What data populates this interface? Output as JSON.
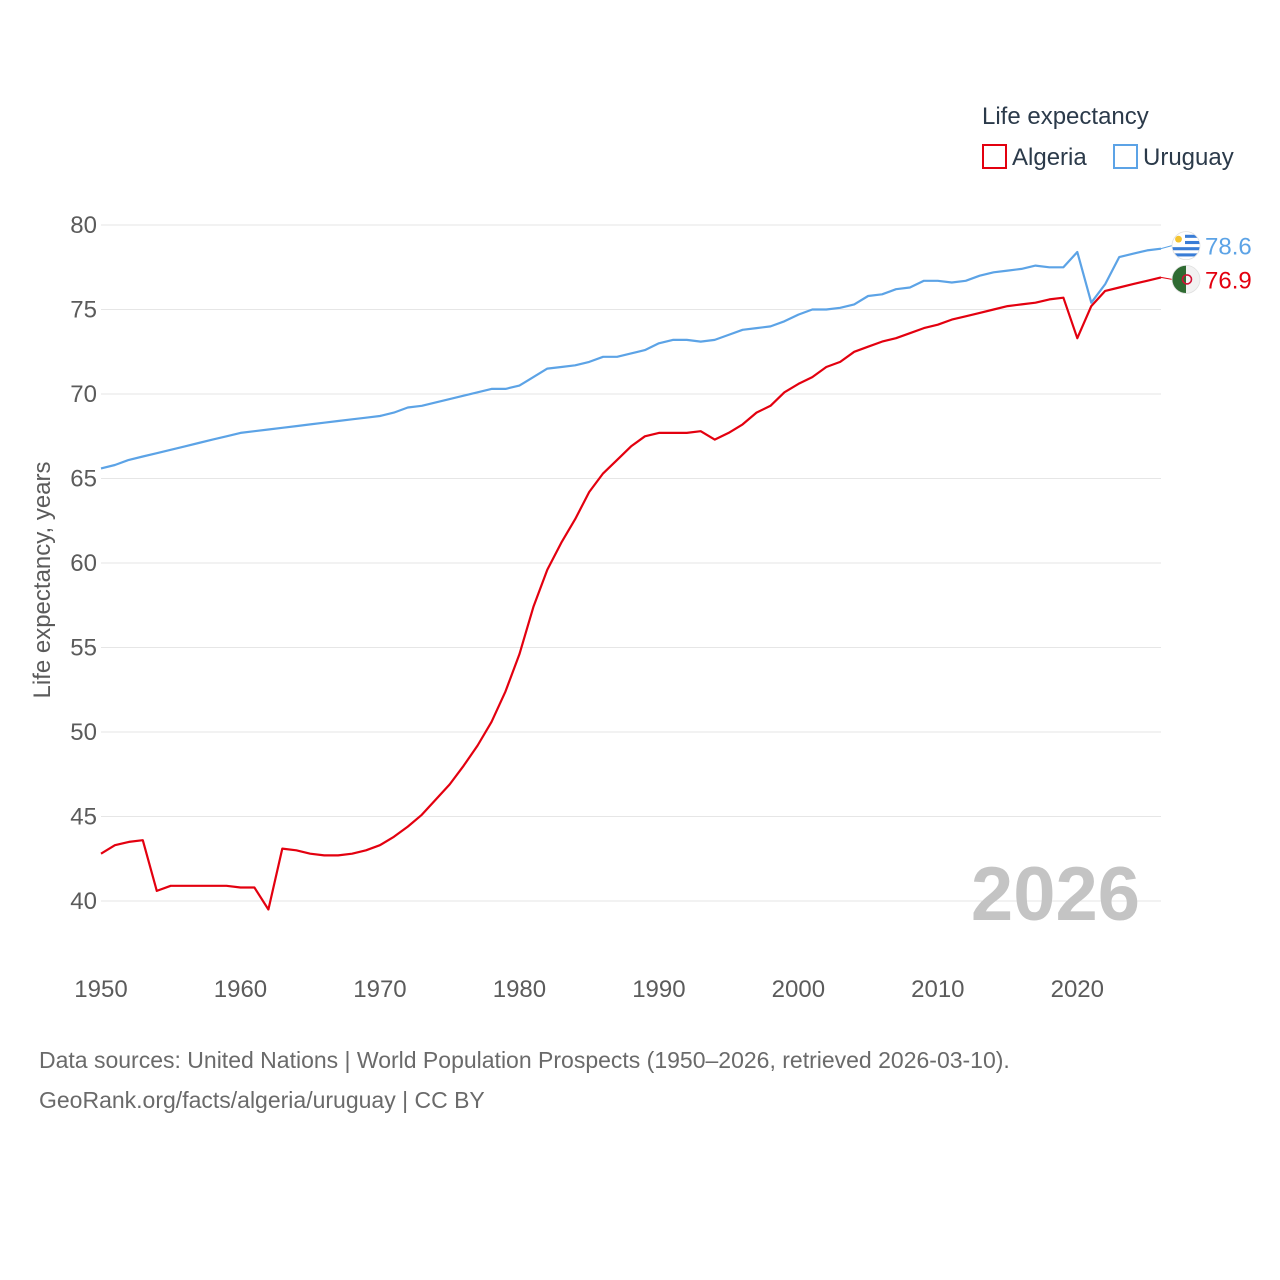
{
  "chart_data": {
    "type": "line",
    "title": "",
    "legend_title": "Life expectancy",
    "xlabel": "",
    "ylabel": "Life expectancy, years",
    "xlim": [
      1950,
      2026
    ],
    "ylim": [
      38,
      81
    ],
    "x_ticks": [
      1950,
      1960,
      1970,
      1980,
      1990,
      2000,
      2010,
      2020
    ],
    "y_ticks": [
      40,
      45,
      50,
      55,
      60,
      65,
      70,
      75,
      80
    ],
    "grid": true,
    "legend_position": "top-right",
    "year_label": "2026",
    "x": [
      1950,
      1951,
      1952,
      1953,
      1954,
      1955,
      1956,
      1957,
      1958,
      1959,
      1960,
      1961,
      1962,
      1963,
      1964,
      1965,
      1966,
      1967,
      1968,
      1969,
      1970,
      1971,
      1972,
      1973,
      1974,
      1975,
      1976,
      1977,
      1978,
      1979,
      1980,
      1981,
      1982,
      1983,
      1984,
      1985,
      1986,
      1987,
      1988,
      1989,
      1990,
      1991,
      1992,
      1993,
      1994,
      1995,
      1996,
      1997,
      1998,
      1999,
      2000,
      2001,
      2002,
      2003,
      2004,
      2005,
      2006,
      2007,
      2008,
      2009,
      2010,
      2011,
      2012,
      2013,
      2014,
      2015,
      2016,
      2017,
      2018,
      2019,
      2020,
      2021,
      2022,
      2023,
      2024,
      2025,
      2026
    ],
    "series": [
      {
        "name": "Algeria",
        "color": "#e3000f",
        "end_label": "76.9",
        "flag_icon": "algeria-flag-icon",
        "values": [
          42.8,
          43.3,
          43.5,
          43.6,
          40.6,
          40.9,
          40.9,
          40.9,
          40.9,
          40.9,
          40.8,
          40.8,
          39.5,
          43.1,
          43.0,
          42.8,
          42.7,
          42.7,
          42.8,
          43.0,
          43.3,
          43.8,
          44.4,
          45.1,
          46.0,
          46.9,
          48.0,
          49.2,
          50.6,
          52.4,
          54.6,
          57.4,
          59.6,
          61.2,
          62.6,
          64.2,
          65.3,
          66.1,
          66.9,
          67.5,
          67.7,
          67.7,
          67.7,
          67.8,
          67.3,
          67.7,
          68.2,
          68.9,
          69.3,
          70.1,
          70.6,
          71.0,
          71.6,
          71.9,
          72.5,
          72.8,
          73.1,
          73.3,
          73.6,
          73.9,
          74.1,
          74.4,
          74.6,
          74.8,
          75.0,
          75.2,
          75.3,
          75.4,
          75.6,
          75.7,
          73.3,
          75.2,
          76.1,
          76.3,
          76.5,
          76.7,
          76.9
        ]
      },
      {
        "name": "Uruguay",
        "color": "#5ca3e6",
        "end_label": "78.6",
        "flag_icon": "uruguay-flag-icon",
        "values": [
          65.6,
          65.8,
          66.1,
          66.3,
          66.5,
          66.7,
          66.9,
          67.1,
          67.3,
          67.5,
          67.7,
          67.8,
          67.9,
          68.0,
          68.1,
          68.2,
          68.3,
          68.4,
          68.5,
          68.6,
          68.7,
          68.9,
          69.2,
          69.3,
          69.5,
          69.7,
          69.9,
          70.1,
          70.3,
          70.3,
          70.5,
          71.0,
          71.5,
          71.6,
          71.7,
          71.9,
          72.2,
          72.2,
          72.4,
          72.6,
          73.0,
          73.2,
          73.2,
          73.1,
          73.2,
          73.5,
          73.8,
          73.9,
          74.0,
          74.3,
          74.7,
          75.0,
          75.0,
          75.1,
          75.3,
          75.8,
          75.9,
          76.2,
          76.3,
          76.7,
          76.7,
          76.6,
          76.7,
          77.0,
          77.2,
          77.3,
          77.4,
          77.6,
          77.5,
          77.5,
          78.4,
          75.4,
          76.5,
          78.1,
          78.3,
          78.5,
          78.6
        ]
      }
    ]
  },
  "footer": {
    "sources": "Data sources: United Nations | World Population Prospects (1950–2026, retrieved 2026-03-10).",
    "credit": "GeoRank.org/facts/algeria/uruguay | CC BY"
  }
}
